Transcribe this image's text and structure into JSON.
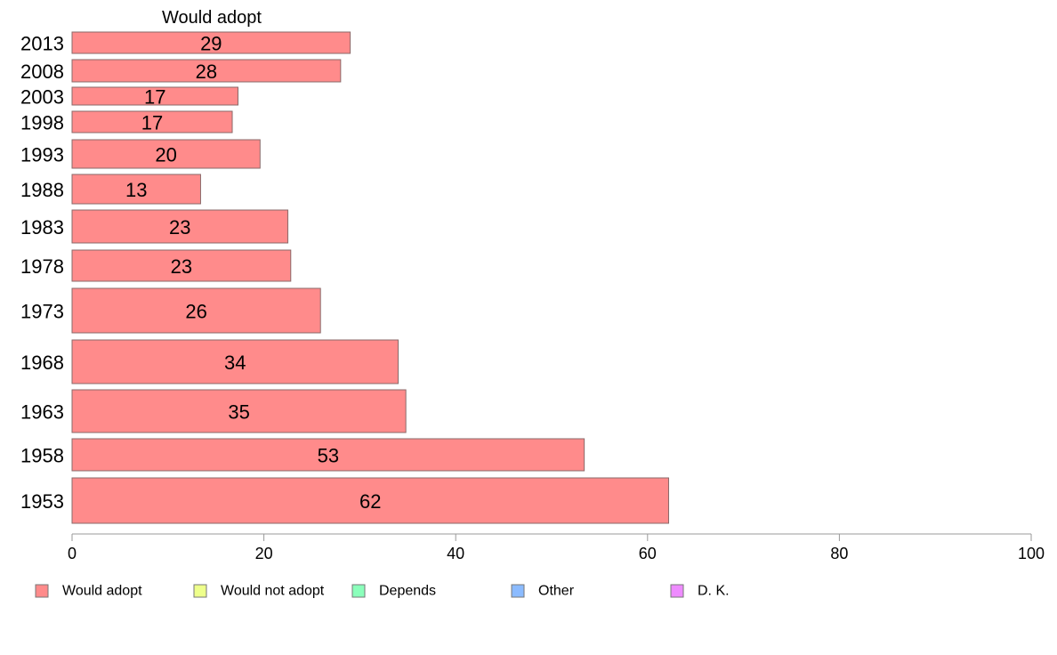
{
  "chart_data": {
    "type": "bar",
    "orientation": "horizontal",
    "title": "Would adopt",
    "categories": [
      "2013",
      "2008",
      "2003",
      "1998",
      "1993",
      "1988",
      "1983",
      "1978",
      "1973",
      "1968",
      "1963",
      "1958",
      "1953"
    ],
    "series": [
      {
        "name": "Would adopt",
        "values": [
          29,
          28,
          17.3,
          16.7,
          19.6,
          13.4,
          22.5,
          22.8,
          25.9,
          34,
          34.8,
          53.4,
          62.2
        ],
        "data_labels": [
          "29",
          "28",
          "17",
          "17",
          "20",
          "13",
          "23",
          "23",
          "26",
          "34",
          "35",
          "53",
          "62"
        ]
      }
    ],
    "xlim": [
      0,
      100
    ],
    "xticks": [
      "0",
      "20",
      "40",
      "60",
      "80",
      "100"
    ],
    "grid": false,
    "legend": {
      "placement": "bottom",
      "items": [
        {
          "label": "Would adopt",
          "color": "#ff8b8b"
        },
        {
          "label": "Would not adopt",
          "color": "#eeff8b"
        },
        {
          "label": "Depends",
          "color": "#8bffbb"
        },
        {
          "label": "Other",
          "color": "#8bbbff"
        },
        {
          "label": "D. K.",
          "color": "#ee8bff"
        }
      ]
    },
    "colors": {
      "bar_fill": "#ff8b8b"
    }
  }
}
